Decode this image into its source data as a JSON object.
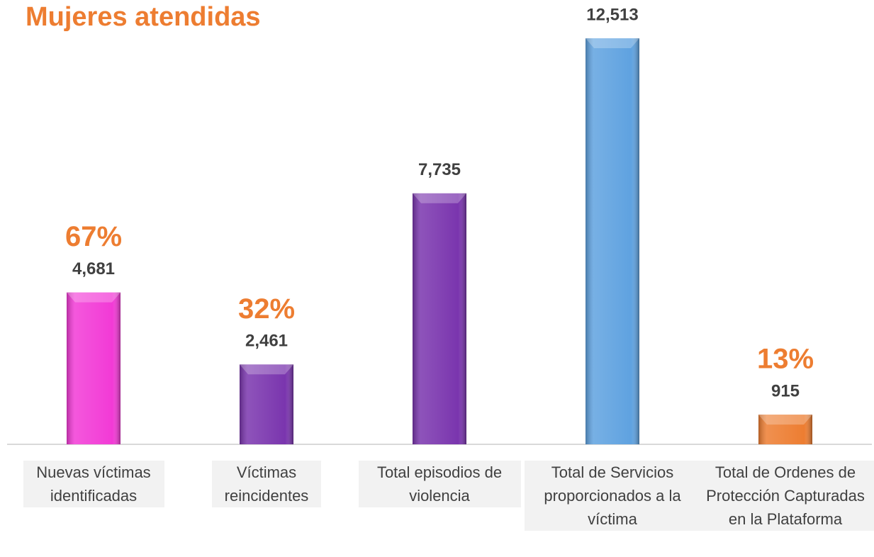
{
  "chart_data": {
    "type": "bar",
    "title": "Mujeres atendidas",
    "categories": [
      "Nuevas víctimas identificadas",
      "Víctimas reincidentes",
      "Total episodios de violencia",
      "Total de Servicios proporcionados a la víctima",
      "Total de Ordenes de Protección Capturadas en la Plataforma"
    ],
    "values": [
      4681,
      2461,
      7735,
      12513,
      915
    ],
    "value_labels": [
      "4,681",
      "2,461",
      "7,735",
      "12,513",
      "915"
    ],
    "percentages": [
      67,
      32,
      null,
      null,
      13
    ],
    "percentage_labels": [
      "67%",
      "32%",
      null,
      null,
      "13%"
    ],
    "colors": [
      "#f23ad6",
      "#7a35ae",
      "#7a35ae",
      "#5fa2e0",
      "#ed7d31"
    ]
  }
}
